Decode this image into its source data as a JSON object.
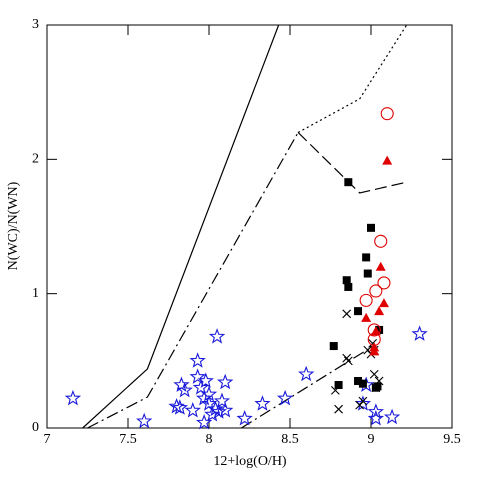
{
  "chart_data": {
    "type": "scatter",
    "xlabel": "12+log(O/H)",
    "ylabel": "N(WC)/N(WN)",
    "xlim": [
      7,
      9.5
    ],
    "ylim": [
      0,
      3
    ],
    "xticks": [
      7,
      7.5,
      8,
      8.5,
      9,
      9.5
    ],
    "yticks": [
      0,
      1,
      2,
      3
    ],
    "series": [
      {
        "marker": "line",
        "linestyle": "solid",
        "color": "#000000",
        "x": [
          7.22,
          7.62,
          8.43
        ],
        "values": [
          0,
          0.44,
          3
        ]
      },
      {
        "marker": "line",
        "linestyle": "dashdot",
        "color": "#000000",
        "x": [
          7.25,
          7.62,
          8.55
        ],
        "values": [
          0,
          0.23,
          2.2
        ]
      },
      {
        "marker": "line",
        "linestyle": "dashed",
        "color": "#000000",
        "x": [
          8.55,
          8.93,
          9.22
        ],
        "values": [
          2.2,
          1.75,
          1.83
        ]
      },
      {
        "marker": "line",
        "linestyle": "dotted",
        "color": "#000000",
        "x": [
          8.55,
          8.93,
          9.22
        ],
        "values": [
          2.2,
          2.45,
          3
        ]
      },
      {
        "marker": "line",
        "linestyle": "dashdot",
        "color": "#000000",
        "x": [
          8.2,
          9.0
        ],
        "values": [
          0,
          0.6
        ]
      },
      {
        "marker": "star",
        "color": "#1a1adb",
        "x": [
          7.16,
          7.6,
          7.8,
          7.82,
          7.83,
          7.85,
          7.9,
          7.93,
          7.93,
          7.95,
          7.97,
          7.97,
          7.98,
          8.0,
          8.0,
          8.02,
          8.04,
          8.05,
          8.06,
          8.08,
          8.1,
          8.1,
          8.22,
          8.33,
          8.47,
          8.6,
          8.95,
          8.97,
          9.03,
          9.03,
          9.13,
          9.3
        ],
        "values": [
          0.22,
          0.05,
          0.16,
          0.15,
          0.32,
          0.28,
          0.13,
          0.5,
          0.38,
          0.3,
          0.22,
          0.04,
          0.35,
          0.25,
          0.18,
          0.1,
          0.14,
          0.68,
          0.12,
          0.2,
          0.34,
          0.13,
          0.07,
          0.18,
          0.22,
          0.4,
          0.18,
          0.32,
          0.12,
          0.07,
          0.08,
          0.7
        ]
      },
      {
        "marker": "square",
        "color": "#000000",
        "x": [
          8.77,
          8.8,
          8.85,
          8.86,
          8.86,
          8.92,
          8.92,
          8.95,
          8.97,
          8.98,
          9.0,
          9.05,
          9.03,
          9.04
        ],
        "values": [
          0.61,
          0.32,
          1.1,
          1.05,
          1.83,
          0.87,
          0.35,
          0.33,
          1.27,
          1.15,
          1.49,
          0.73,
          0.3,
          0.31
        ]
      },
      {
        "marker": "cross",
        "color": "#000000",
        "x": [
          8.78,
          8.8,
          8.85,
          8.85,
          8.86,
          8.93,
          8.95,
          8.98,
          9.0,
          9.01,
          9.02,
          9.03,
          9.05,
          9.02
        ],
        "values": [
          0.28,
          0.14,
          0.85,
          0.52,
          0.5,
          0.17,
          0.2,
          0.58,
          0.55,
          0.63,
          0.4,
          0.3,
          0.35,
          0.58
        ]
      },
      {
        "marker": "triangle",
        "color": "#e00000",
        "x": [
          8.97,
          9.02,
          9.02,
          9.03,
          9.05,
          9.06,
          9.08,
          9.1
        ],
        "values": [
          0.82,
          0.6,
          0.57,
          0.72,
          0.87,
          1.2,
          0.93,
          1.99
        ]
      },
      {
        "marker": "circle",
        "color": "#e00000",
        "x": [
          8.97,
          9.02,
          9.02,
          9.03,
          9.06,
          9.08,
          9.1
        ],
        "values": [
          0.95,
          0.73,
          0.66,
          1.02,
          1.39,
          1.08,
          2.34
        ]
      }
    ]
  }
}
